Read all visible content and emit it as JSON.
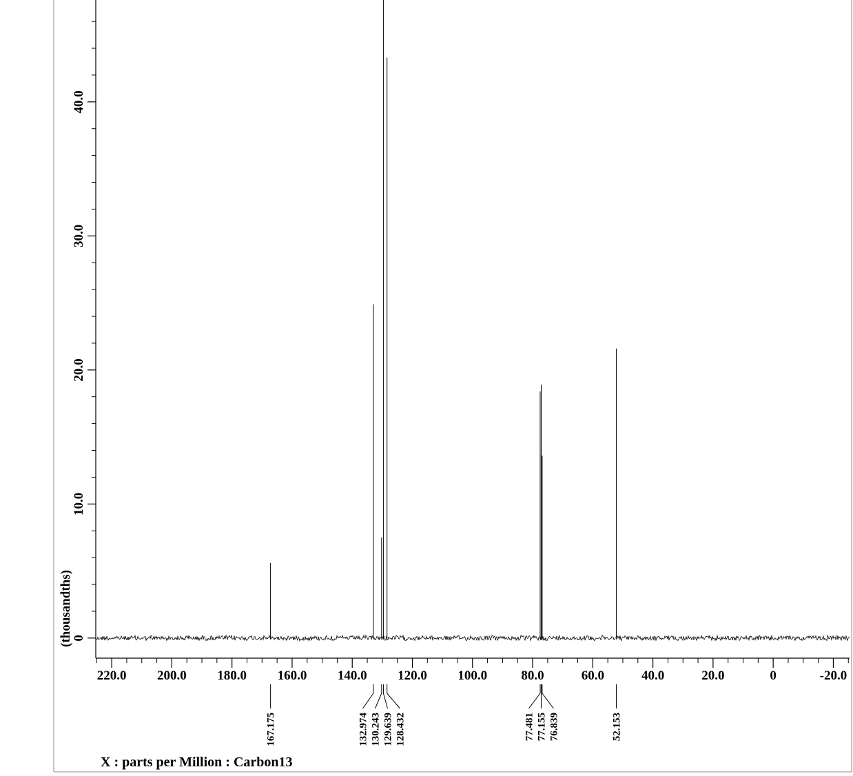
{
  "chart_data": {
    "type": "line",
    "title": "",
    "xlabel": "X : parts per Million : Carbon13",
    "ylabel": "(thousandths)",
    "x_reversed": true,
    "xlim": [
      225.3,
      -25.4
    ],
    "ylim": [
      -1.5,
      47.6
    ],
    "x_ticks": [
      {
        "value": 220,
        "label": "220.0"
      },
      {
        "value": 200,
        "label": "200.0"
      },
      {
        "value": 180,
        "label": "180.0"
      },
      {
        "value": 160,
        "label": "160.0"
      },
      {
        "value": 140,
        "label": "140.0"
      },
      {
        "value": 120,
        "label": "120.0"
      },
      {
        "value": 100,
        "label": "100.0"
      },
      {
        "value": 80,
        "label": "80.0"
      },
      {
        "value": 60,
        "label": "60.0"
      },
      {
        "value": 40,
        "label": "40.0"
      },
      {
        "value": 20,
        "label": "20.0"
      },
      {
        "value": 0,
        "label": "0"
      },
      {
        "value": -20,
        "label": "-20.0"
      }
    ],
    "y_ticks": [
      {
        "value": 0,
        "label": "0"
      },
      {
        "value": 10,
        "label": "10.0"
      },
      {
        "value": 20,
        "label": "20.0"
      },
      {
        "value": 30,
        "label": "30.0"
      },
      {
        "value": 40,
        "label": "40.0"
      }
    ],
    "series": [
      {
        "peaks": [
          {
            "x": 167.175,
            "y": 5.6
          },
          {
            "x": 132.974,
            "y": 24.9
          },
          {
            "x": 130.243,
            "y": 7.5
          },
          {
            "x": 129.639,
            "y": 47.6
          },
          {
            "x": 128.432,
            "y": 43.3
          },
          {
            "x": 77.481,
            "y": 18.4
          },
          {
            "x": 77.155,
            "y": 18.9
          },
          {
            "x": 76.839,
            "y": 13.6
          },
          {
            "x": 52.153,
            "y": 21.6
          }
        ]
      }
    ],
    "peak_label_groups": [
      {
        "labels": [
          "167.175"
        ]
      },
      {
        "labels": [
          "132.974",
          "130.243",
          "129.639",
          "128.432"
        ]
      },
      {
        "labels": [
          "77.481",
          "77.155",
          "76.839"
        ]
      },
      {
        "labels": [
          "52.153"
        ]
      }
    ],
    "colors": {
      "trace": "#000000",
      "axis": "#000000",
      "frame": "#888888"
    }
  }
}
